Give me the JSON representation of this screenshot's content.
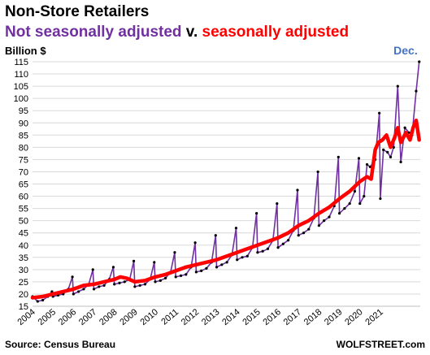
{
  "chart_data": {
    "type": "line",
    "title": "Non-Store Retailers",
    "subtitle_parts": [
      "Not seasonally adjusted",
      " v. ",
      "seasonally adjusted"
    ],
    "ylabel": "Billion $",
    "source": "Source: Census Bureau",
    "brand": "WOLFSTREET.com",
    "annotation": "Dec.",
    "ylim": [
      15,
      115
    ],
    "yticks": [
      15,
      20,
      25,
      30,
      35,
      40,
      45,
      50,
      55,
      60,
      65,
      70,
      75,
      80,
      85,
      90,
      95,
      100,
      105,
      110,
      115
    ],
    "x_tick_labels": [
      "2004",
      "2005",
      "2006",
      "2007",
      "2008",
      "2009",
      "2010",
      "2011",
      "2012",
      "2013",
      "2014",
      "2015",
      "2016",
      "2017",
      "2018",
      "2019",
      "2020",
      "2021"
    ],
    "grid": true,
    "colors": {
      "nsa": "#7030a0",
      "sa": "#ff0000",
      "grid": "#d9d9d9",
      "annotation": "#4472c4"
    },
    "series": [
      {
        "name": "Not seasonally adjusted",
        "key": "nsa",
        "style": "thin line with markers",
        "values": [
          [
            2004.0,
            19
          ],
          [
            2004.25,
            17
          ],
          [
            2004.5,
            17.5
          ],
          [
            2004.75,
            19
          ],
          [
            2004.95,
            21
          ],
          [
            2005.0,
            19
          ],
          [
            2005.25,
            19.5
          ],
          [
            2005.5,
            20
          ],
          [
            2005.75,
            22
          ],
          [
            2005.95,
            27
          ],
          [
            2006.0,
            20
          ],
          [
            2006.25,
            21
          ],
          [
            2006.5,
            22
          ],
          [
            2006.75,
            24
          ],
          [
            2006.95,
            30
          ],
          [
            2007.0,
            22
          ],
          [
            2007.25,
            23
          ],
          [
            2007.5,
            23.5
          ],
          [
            2007.75,
            26
          ],
          [
            2007.95,
            31
          ],
          [
            2008.0,
            24
          ],
          [
            2008.25,
            24.5
          ],
          [
            2008.5,
            25
          ],
          [
            2008.75,
            26
          ],
          [
            2008.95,
            33.5
          ],
          [
            2009.0,
            23
          ],
          [
            2009.25,
            23.5
          ],
          [
            2009.5,
            24
          ],
          [
            2009.75,
            26
          ],
          [
            2009.95,
            33
          ],
          [
            2010.0,
            25
          ],
          [
            2010.25,
            25.5
          ],
          [
            2010.5,
            26.5
          ],
          [
            2010.75,
            29
          ],
          [
            2010.95,
            37
          ],
          [
            2011.0,
            27
          ],
          [
            2011.25,
            27.5
          ],
          [
            2011.5,
            28
          ],
          [
            2011.75,
            31
          ],
          [
            2011.95,
            41
          ],
          [
            2012.0,
            29
          ],
          [
            2012.25,
            29.5
          ],
          [
            2012.5,
            30.5
          ],
          [
            2012.75,
            33
          ],
          [
            2012.95,
            44
          ],
          [
            2013.0,
            31
          ],
          [
            2013.25,
            32
          ],
          [
            2013.5,
            33
          ],
          [
            2013.75,
            36
          ],
          [
            2013.95,
            47
          ],
          [
            2014.0,
            34
          ],
          [
            2014.25,
            35
          ],
          [
            2014.5,
            35.5
          ],
          [
            2014.75,
            39
          ],
          [
            2014.95,
            53
          ],
          [
            2015.0,
            37
          ],
          [
            2015.25,
            37.5
          ],
          [
            2015.5,
            38.5
          ],
          [
            2015.75,
            42
          ],
          [
            2015.95,
            57
          ],
          [
            2016.0,
            39
          ],
          [
            2016.25,
            40.5
          ],
          [
            2016.5,
            42
          ],
          [
            2016.75,
            46
          ],
          [
            2016.95,
            62.5
          ],
          [
            2017.0,
            44
          ],
          [
            2017.25,
            45
          ],
          [
            2017.5,
            46.5
          ],
          [
            2017.75,
            51
          ],
          [
            2017.95,
            70
          ],
          [
            2018.0,
            48
          ],
          [
            2018.25,
            50
          ],
          [
            2018.5,
            51.5
          ],
          [
            2018.75,
            56
          ],
          [
            2018.95,
            76
          ],
          [
            2019.0,
            53
          ],
          [
            2019.25,
            55
          ],
          [
            2019.5,
            57
          ],
          [
            2019.75,
            62
          ],
          [
            2019.95,
            75.5
          ],
          [
            2020.0,
            57
          ],
          [
            2020.2,
            60
          ],
          [
            2020.35,
            73
          ],
          [
            2020.5,
            72
          ],
          [
            2020.75,
            75
          ],
          [
            2020.95,
            94
          ],
          [
            2021.0,
            59
          ],
          [
            2021.15,
            79
          ],
          [
            2021.35,
            78
          ],
          [
            2021.5,
            76
          ],
          [
            2021.65,
            80
          ],
          [
            2021.85,
            105
          ],
          [
            2022.0,
            74
          ],
          [
            2022.2,
            88
          ],
          [
            2022.4,
            86
          ],
          [
            2022.55,
            85
          ],
          [
            2022.75,
            103
          ],
          [
            2022.9,
            115
          ]
        ]
      },
      {
        "name": "seasonally adjusted",
        "key": "sa",
        "style": "thick line",
        "values": [
          [
            2004.0,
            18.5
          ],
          [
            2004.5,
            19
          ],
          [
            2005.0,
            20
          ],
          [
            2005.5,
            21
          ],
          [
            2006.0,
            22
          ],
          [
            2006.5,
            23.5
          ],
          [
            2007.0,
            24
          ],
          [
            2007.5,
            25
          ],
          [
            2008.0,
            26
          ],
          [
            2008.3,
            27
          ],
          [
            2008.6,
            26.5
          ],
          [
            2009.0,
            25
          ],
          [
            2009.5,
            25.5
          ],
          [
            2010.0,
            27
          ],
          [
            2010.5,
            28
          ],
          [
            2011.0,
            29.5
          ],
          [
            2011.5,
            31
          ],
          [
            2012.0,
            32
          ],
          [
            2012.5,
            33
          ],
          [
            2013.0,
            34
          ],
          [
            2013.5,
            35.5
          ],
          [
            2014.0,
            37
          ],
          [
            2014.5,
            38.5
          ],
          [
            2015.0,
            40
          ],
          [
            2015.5,
            41.5
          ],
          [
            2016.0,
            43
          ],
          [
            2016.5,
            45
          ],
          [
            2017.0,
            48
          ],
          [
            2017.5,
            50
          ],
          [
            2018.0,
            53
          ],
          [
            2018.5,
            55.5
          ],
          [
            2019.0,
            59
          ],
          [
            2019.5,
            62
          ],
          [
            2020.0,
            66
          ],
          [
            2020.35,
            68
          ],
          [
            2020.55,
            67
          ],
          [
            2020.75,
            79
          ],
          [
            2020.9,
            82
          ],
          [
            2021.1,
            83
          ],
          [
            2021.3,
            85
          ],
          [
            2021.5,
            80
          ],
          [
            2021.7,
            84
          ],
          [
            2021.85,
            88
          ],
          [
            2022.0,
            82
          ],
          [
            2022.25,
            86
          ],
          [
            2022.45,
            83
          ],
          [
            2022.6,
            88
          ],
          [
            2022.75,
            91
          ],
          [
            2022.9,
            83
          ]
        ]
      }
    ]
  }
}
